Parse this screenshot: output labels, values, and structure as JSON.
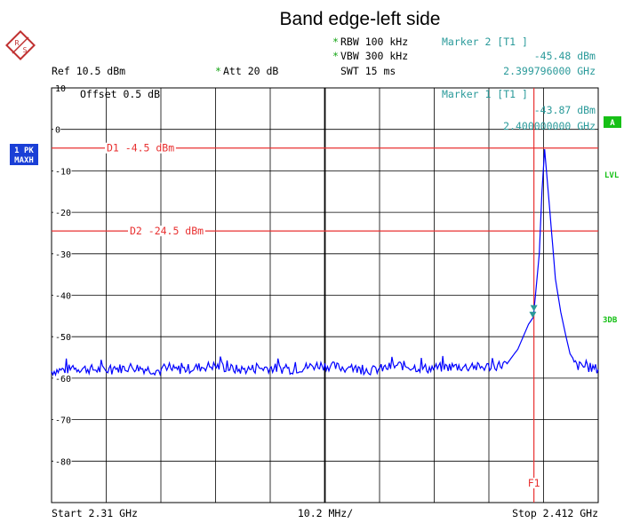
{
  "title": "Band edge-left side",
  "logo": {
    "name": "rohde-schwarz-logo",
    "letters": [
      "R",
      "S"
    ]
  },
  "header": {
    "rbw": "RBW 100 kHz",
    "vbw": "VBW 300 kHz",
    "swt": "SWT 15 ms",
    "ref": "Ref  10.5 dBm",
    "att": "Att  20 dB",
    "marker2_label": "Marker 2 [T1 ]",
    "marker2_level": "-45.48 dBm",
    "marker2_freq": "2.399796000 GHz",
    "star": "*"
  },
  "grid_overlay": {
    "offset": "Offset  0.5 dB",
    "marker1_label": "Marker 1 [T1 ]",
    "marker1_level": "-43.87 dBm",
    "marker1_freq": "2.400000000 GHz"
  },
  "side_badges": {
    "trace_mode_1": "1 PK",
    "trace_mode_2": "MAXH",
    "a": "A",
    "lvl": "LVL",
    "db3": "3DB"
  },
  "footer": {
    "start": "Start 2.31 GHz",
    "span": "10.2 MHz/",
    "stop": "Stop 2.412 GHz"
  },
  "colors": {
    "trace": "#0000ff",
    "display_line": "#e83030",
    "marker": "#2a9a9a",
    "badge_blue": "#1a3fd6",
    "badge_green": "#16c016",
    "grid": "#000000"
  },
  "chart_data": {
    "type": "line",
    "title": "Band edge-left side",
    "xlim": [
      2.31,
      2.412
    ],
    "ylim": [
      -90,
      10
    ],
    "y_ticks": [
      10,
      0,
      -10,
      -20,
      -30,
      -40,
      -50,
      -60,
      -70,
      -80
    ],
    "x_divisions": 10,
    "y_divisions": 10,
    "grid": true,
    "display_lines": [
      {
        "name": "D1",
        "label": "D1 -4.5 dBm",
        "value": -4.5
      },
      {
        "name": "D2",
        "label": "D2 -24.5 dBm",
        "value": -24.5
      }
    ],
    "frequency_line": {
      "name": "F1",
      "label": "F1",
      "value": 2.4
    },
    "markers": [
      {
        "name": "Marker 1",
        "x": 2.4,
        "y": -43.87
      },
      {
        "name": "Marker 2",
        "x": 2.399796,
        "y": -45.48
      }
    ],
    "series": [
      {
        "name": "1 PK MAXH",
        "x": [
          2.31,
          2.315,
          2.32,
          2.325,
          2.33,
          2.335,
          2.34,
          2.345,
          2.35,
          2.355,
          2.36,
          2.365,
          2.37,
          2.375,
          2.38,
          2.385,
          2.39,
          2.393,
          2.395,
          2.397,
          2.398,
          2.399,
          2.3998,
          2.4,
          2.401,
          2.4015,
          2.402,
          2.403,
          2.404,
          2.405,
          2.406,
          2.407,
          2.408,
          2.41,
          2.412
        ],
        "values": [
          -58.3,
          -57.6,
          -58.1,
          -57.3,
          -58.2,
          -57.8,
          -57.0,
          -58.0,
          -57.5,
          -57.9,
          -56.8,
          -57.6,
          -58.1,
          -56.9,
          -57.7,
          -57.2,
          -57.4,
          -57.0,
          -56.5,
          -53.0,
          -50.0,
          -47.0,
          -45.5,
          -43.9,
          -30.0,
          -15.0,
          -4.8,
          -20.0,
          -36.0,
          -44.0,
          -50.0,
          -55.5,
          -57.0,
          -57.3,
          -57.9
        ]
      }
    ]
  }
}
